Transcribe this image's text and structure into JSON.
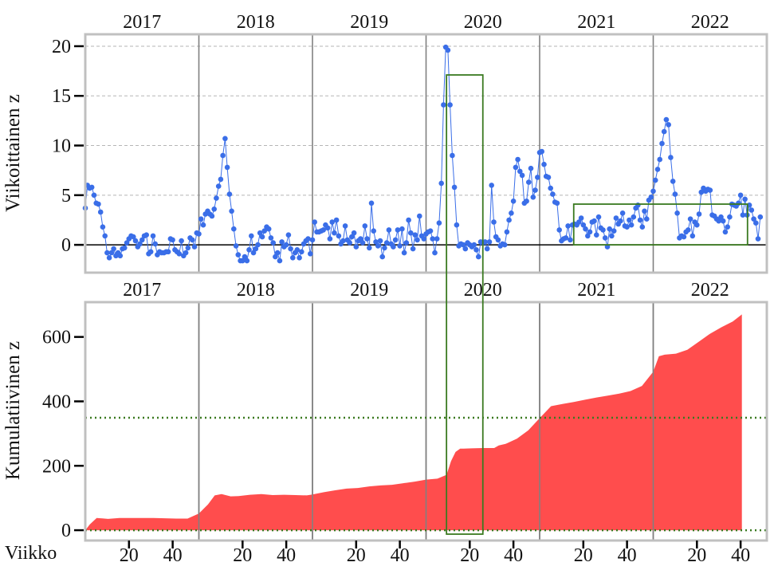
{
  "chart_data": [
    {
      "type": "line",
      "ylabel": "Viikoittainen z",
      "ylim": [
        -2.8,
        21.2
      ],
      "yticks": [
        0,
        5,
        10,
        15,
        20
      ],
      "years": [
        "2017",
        "2018",
        "2019",
        "2020",
        "2021",
        "2022"
      ],
      "grid": "horizontal dashed",
      "series": [
        {
          "color": "#3a6ee8",
          "weeks_per_year": 52,
          "values": [
            3.7,
            6.0,
            5.7,
            5.8,
            5.0,
            4.2,
            4.1,
            3.3,
            1.8,
            0.9,
            -0.8,
            -1.3,
            -0.8,
            -0.4,
            -1.1,
            -0.8,
            -1.1,
            -0.4,
            -0.3,
            0.2,
            0.6,
            0.9,
            0.8,
            0.4,
            -0.2,
            0.1,
            0.5,
            0.9,
            1.0,
            -0.9,
            -0.7,
            0.9,
            0.1,
            -1.0,
            -0.7,
            -0.8,
            -0.8,
            -0.7,
            -0.7,
            0.6,
            0.5,
            -0.5,
            -0.7,
            -0.9,
            0.4,
            -1.1,
            -0.8,
            -0.3,
            0.7,
            0.5,
            -0.2,
            1.2,
            1.1,
            2.6,
            2.0,
            3.1,
            3.4,
            3.1,
            2.9,
            3.6,
            4.7,
            5.9,
            6.6,
            9.0,
            10.7,
            7.8,
            5.1,
            3.4,
            1.6,
            -0.1,
            -1.0,
            -1.6,
            -1.6,
            -1.2,
            -1.6,
            -0.5,
            0.9,
            -0.8,
            -0.4,
            0.0,
            1.2,
            0.8,
            1.4,
            1.8,
            1.6,
            0.7,
            0.2,
            -1.2,
            -0.8,
            -1.6,
            0.3,
            -0.2,
            0.0,
            1.0,
            -0.4,
            -1.3,
            -0.8,
            -0.5,
            -1.3,
            -0.7,
            0.1,
            0.4,
            0.6,
            -0.9,
            0.5,
            2.3,
            1.3,
            1.3,
            1.4,
            1.5,
            2.0,
            1.7,
            0.6,
            2.3,
            1.2,
            2.5,
            0.9,
            0.1,
            0.4,
            1.9,
            0.5,
            0.2,
            0.8,
            1.2,
            -0.2,
            0.4,
            0.6,
            0.2,
            1.9,
            0.6,
            -0.3,
            4.2,
            1.4,
            0.3,
            -0.1,
            0.4,
            -1.2,
            -0.3,
            0.2,
            1.5,
            0.1,
            -0.2,
            0.5,
            1.5,
            -0.1,
            1.6,
            -0.8,
            0.2,
            2.5,
            1.2,
            -0.4,
            1.0,
            0.5,
            2.9,
            0.9,
            0.6,
            1.1,
            1.3,
            1.4,
            0.6,
            -0.8,
            0.6,
            2.2,
            6.2,
            14.1,
            19.9,
            19.6,
            14.1,
            9.0,
            5.8,
            2.0,
            -0.1,
            0.1,
            0.0,
            -0.4,
            0.2,
            0.0,
            -0.2,
            0.0,
            -0.5,
            -1.2,
            0.3,
            0.2,
            0.3,
            -0.4,
            0.3,
            6.0,
            2.3,
            0.8,
            0.5,
            -0.1,
            0.1,
            0.0,
            1.3,
            2.5,
            3.2,
            4.4,
            7.8,
            8.6,
            7.4,
            7.0,
            4.2,
            4.4,
            6.3,
            7.7,
            4.8,
            5.5,
            6.8,
            9.3,
            9.4,
            8.1,
            6.9,
            6.8,
            5.7,
            5.1,
            4.3,
            4.2,
            1.5,
            0.4,
            0.6,
            0.7,
            1.9,
            0.5,
            2.0,
            2.1,
            2.0,
            2.3,
            2.7,
            2.0,
            1.6,
            0.9,
            1.3,
            2.3,
            2.4,
            1.0,
            2.8,
            1.7,
            1.5,
            0.7,
            -0.2,
            1.6,
            0.9,
            1.4,
            2.7,
            2.1,
            2.4,
            3.2,
            1.9,
            1.8,
            2.5,
            2.0,
            2.8,
            3.7,
            4.0,
            2.5,
            1.8,
            3.4,
            2.6,
            4.5,
            4.8,
            5.4,
            6.5,
            7.6,
            8.6,
            10.2,
            11.4,
            12.6,
            12.1,
            8.8,
            6.4,
            5.1,
            3.2,
            0.7,
            0.9,
            0.8,
            1.3,
            1.5,
            2.6,
            0.9,
            2.3,
            2.0,
            3.1,
            5.3,
            5.7,
            5.4,
            5.6,
            5.5,
            3.0,
            2.9,
            2.6,
            2.4,
            2.8,
            2.4,
            1.3,
            1.8,
            2.8,
            4.1,
            4.0,
            3.9,
            4.2,
            5.0,
            3.0,
            4.6,
            3.0,
            4.0,
            3.5,
            2.6,
            2.2,
            0.6,
            2.8
          ]
        }
      ]
    },
    {
      "type": "area",
      "ylabel": "Kumulatiivinen z",
      "ylim": [
        -32,
        708
      ],
      "yticks": [
        0,
        200,
        400,
        600
      ],
      "xlabel": "Viikko",
      "xticks": [
        20,
        40
      ],
      "years": [
        "2017",
        "2018",
        "2019",
        "2020",
        "2021",
        "2022"
      ],
      "series": [
        {
          "color": "#ff4d4d",
          "x_years": [
            0,
            0.04,
            0.1,
            0.2,
            0.3,
            0.4,
            0.5,
            0.6,
            0.7,
            0.8,
            0.9,
            1.0,
            1.08,
            1.14,
            1.2,
            1.28,
            1.35,
            1.45,
            1.55,
            1.65,
            1.75,
            1.85,
            1.95,
            2.0,
            2.1,
            2.2,
            2.3,
            2.4,
            2.5,
            2.6,
            2.7,
            2.8,
            2.9,
            3.0,
            3.1,
            3.18,
            3.22,
            3.26,
            3.3,
            3.33,
            3.4,
            3.5,
            3.6,
            3.64,
            3.7,
            3.8,
            3.9,
            4.0,
            4.1,
            4.2,
            4.3,
            4.4,
            4.5,
            4.6,
            4.7,
            4.8,
            4.9,
            5.0,
            5.05,
            5.1,
            5.2,
            5.3,
            5.4,
            5.5,
            5.6,
            5.7,
            5.78
          ],
          "values": [
            0,
            18,
            38,
            35,
            38,
            38,
            38,
            38,
            37,
            36,
            36,
            52,
            80,
            108,
            112,
            105,
            106,
            110,
            112,
            109,
            110,
            109,
            108,
            111,
            118,
            124,
            129,
            131,
            136,
            139,
            141,
            146,
            151,
            157,
            160,
            172,
            215,
            243,
            253,
            253,
            254,
            255,
            255,
            263,
            268,
            284,
            310,
            348,
            385,
            392,
            398,
            405,
            412,
            418,
            424,
            432,
            448,
            492,
            540,
            545,
            548,
            560,
            585,
            610,
            630,
            648,
            670
          ]
        }
      ],
      "reference_lines": [
        {
          "value": 349,
          "color": "#3a7a20",
          "style": "dotted"
        },
        {
          "value": 0,
          "color": "#3a7a20",
          "style": "dotted"
        }
      ]
    }
  ],
  "highlights": [
    {
      "panel": "both",
      "x_years": [
        3.18,
        3.5
      ],
      "color": "#3a7a20"
    },
    {
      "panel": "weekly",
      "x_years": [
        4.3,
        5.83
      ],
      "y_range": [
        0,
        4.1
      ],
      "color": "#3a7a20"
    }
  ],
  "colors": {
    "frame": "#c0c0c0",
    "year_divider": "#808080",
    "zero_line": "#000000",
    "grid": "#b5b5b5",
    "highlight": "#3a7a20"
  }
}
